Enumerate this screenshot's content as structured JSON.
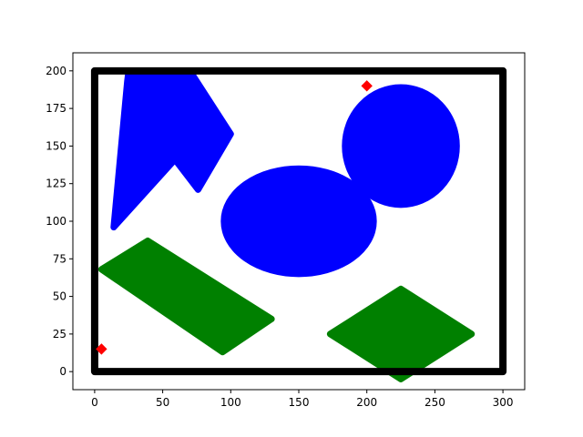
{
  "chart_data": {
    "type": "scatter",
    "title": "",
    "xlabel": "",
    "ylabel": "",
    "xlim": [
      -16,
      316
    ],
    "ylim": [
      -12,
      212
    ],
    "x_ticks": [
      0,
      50,
      100,
      150,
      200,
      250,
      300
    ],
    "y_ticks": [
      0,
      25,
      50,
      75,
      100,
      125,
      150,
      175,
      200
    ],
    "grid": false,
    "colors": {
      "boundary": "#000000",
      "obstacle_blue": "#0000ff",
      "obstacle_green": "#008000",
      "marker": "#ff0000"
    },
    "boundary": {
      "name": "workspace-boundary",
      "x_range": [
        0,
        300
      ],
      "y_range": [
        0,
        200
      ]
    },
    "obstacles": [
      {
        "name": "blue-polygon-obstacle",
        "color": "blue",
        "shape": "polygon",
        "vertices": [
          [
            14,
            96
          ],
          [
            24,
            193
          ],
          [
            25,
            200
          ],
          [
            70,
            200
          ],
          [
            100,
            158
          ],
          [
            76,
            121
          ],
          [
            59,
            141
          ]
        ]
      },
      {
        "name": "blue-ellipse-center",
        "color": "blue",
        "shape": "ellipse",
        "center": [
          150,
          100
        ],
        "radii": [
          55,
          35
        ]
      },
      {
        "name": "blue-ellipse-right",
        "color": "blue",
        "shape": "ellipse",
        "center": [
          225,
          150
        ],
        "radii": [
          41,
          39
        ]
      },
      {
        "name": "green-rectangle-obstacle",
        "color": "green",
        "shape": "polygon",
        "vertices": [
          [
            5,
            68
          ],
          [
            39,
            87
          ],
          [
            130,
            35
          ],
          [
            94,
            13
          ]
        ]
      },
      {
        "name": "green-diamond-obstacle",
        "color": "green",
        "shape": "polygon",
        "vertices": [
          [
            173,
            25
          ],
          [
            225,
            55
          ],
          [
            277,
            25
          ],
          [
            225,
            -5
          ]
        ]
      }
    ],
    "markers": [
      {
        "name": "start-marker",
        "x": 5,
        "y": 15,
        "shape": "diamond",
        "color": "red"
      },
      {
        "name": "goal-marker",
        "x": 200,
        "y": 190,
        "shape": "diamond",
        "color": "red"
      }
    ]
  }
}
